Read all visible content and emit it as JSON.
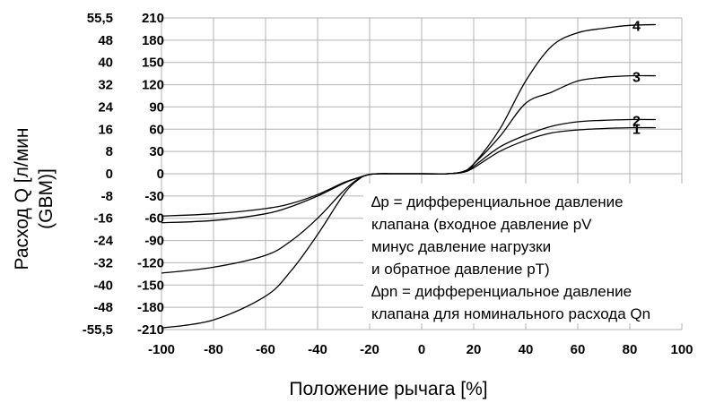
{
  "chart_data": {
    "type": "line",
    "xlabel": "Положение рычага [%]",
    "ylabel_lines": [
      "Расход Q [л/мин",
      "(GBM)]"
    ],
    "xlim": [
      -100,
      100
    ],
    "x_ticks": [
      "-100",
      "-80",
      "-60",
      "-40",
      "-20",
      "0",
      "20",
      "40",
      "60",
      "80",
      "100"
    ],
    "y_ticks_primary": [
      "55,5",
      "48",
      "40",
      "32",
      "24",
      "16",
      "8",
      "0",
      "-8",
      "-16",
      "-24",
      "-32",
      "-40",
      "-48",
      "-55,5"
    ],
    "y_ticks_secondary": [
      "210",
      "180",
      "150",
      "120",
      "90",
      "60",
      "30",
      "0",
      "-30",
      "-60",
      "-90",
      "-120",
      "-150",
      "-180",
      "-210"
    ],
    "ylim_secondary": [
      -210,
      210
    ],
    "grid": true,
    "series": [
      {
        "name": "1",
        "x": [
          -100,
          -80,
          -60,
          -50,
          -40,
          -30,
          -24,
          -20,
          -16,
          -10,
          0,
          10,
          16,
          20,
          30,
          40,
          50,
          60,
          70,
          80,
          90
        ],
        "y": [
          -57,
          -54,
          -47,
          -40,
          -28,
          -12,
          -5,
          -1,
          0,
          0,
          0,
          0,
          2,
          8,
          30,
          45,
          55,
          59,
          61,
          62,
          62
        ]
      },
      {
        "name": "2",
        "x": [
          -100,
          -80,
          -60,
          -50,
          -40,
          -30,
          -24,
          -20,
          -16,
          -10,
          0,
          10,
          16,
          20,
          30,
          40,
          50,
          60,
          70,
          80,
          90
        ],
        "y": [
          -66,
          -63,
          -54,
          -44,
          -30,
          -13,
          -5,
          -1,
          0,
          0,
          0,
          0,
          2,
          10,
          36,
          52,
          64,
          70,
          72,
          73,
          73
        ]
      },
      {
        "name": "3",
        "x": [
          -100,
          -80,
          -60,
          -50,
          -40,
          -30,
          -24,
          -20,
          -16,
          -10,
          0,
          10,
          16,
          20,
          30,
          40,
          50,
          60,
          70,
          80,
          90
        ],
        "y": [
          -134,
          -126,
          -110,
          -90,
          -60,
          -23,
          -6,
          -1,
          0,
          0,
          0,
          0,
          3,
          13,
          50,
          95,
          110,
          125,
          130,
          132,
          132
        ]
      },
      {
        "name": "4",
        "x": [
          -100,
          -80,
          -60,
          -50,
          -40,
          -30,
          -24,
          -20,
          -16,
          -10,
          0,
          10,
          16,
          20,
          30,
          40,
          50,
          60,
          70,
          80,
          90
        ],
        "y": [
          -208,
          -197,
          -165,
          -130,
          -82,
          -28,
          -7,
          -1,
          0,
          0,
          0,
          0,
          3,
          13,
          60,
          125,
          172,
          190,
          196,
          200,
          201
        ]
      }
    ],
    "annotation_lines": [
      "∆p = дифференциальное давление",
      "клапана (входное давление pV",
      "минус давление нагрузки",
      "и обратное давление pT)",
      "∆pn = дифференциальное давление",
      "клапана для номинального расхода Qn"
    ]
  }
}
